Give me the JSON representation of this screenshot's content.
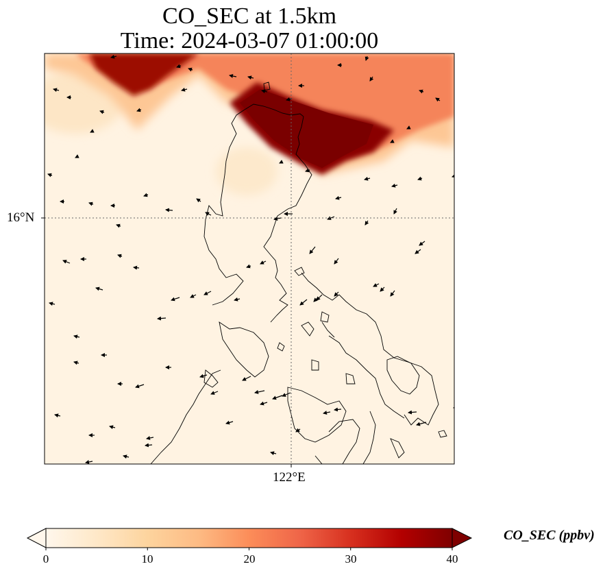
{
  "title": {
    "line1": "CO_SEC at 1.5km",
    "line2": "Time: 2024-03-07 01:00:00"
  },
  "map": {
    "lat_tick_label": "16°N",
    "lon_tick_label": "122°E",
    "gridlines": true,
    "wind_vectors": true,
    "coastline_color": "#000000"
  },
  "colorbar": {
    "label": "CO_SEC (ppbv)",
    "ticks": [
      "0",
      "10",
      "20",
      "30",
      "40"
    ],
    "range": [
      0,
      40
    ],
    "colormap": "OrRd",
    "colors": [
      "#fff7ec",
      "#fee8c8",
      "#fdd49e",
      "#fdbb84",
      "#fc8d59",
      "#ef6548",
      "#d7301f",
      "#b30000",
      "#7f0000"
    ],
    "extend": "both"
  },
  "chart_data": {
    "type": "heatmap",
    "variable": "CO_SEC",
    "units": "ppbv",
    "range": [
      0,
      40
    ],
    "regions": [
      {
        "value": 38
      },
      {
        "value": 40
      },
      {
        "value": 22
      },
      {
        "value": 14
      }
    ]
  }
}
